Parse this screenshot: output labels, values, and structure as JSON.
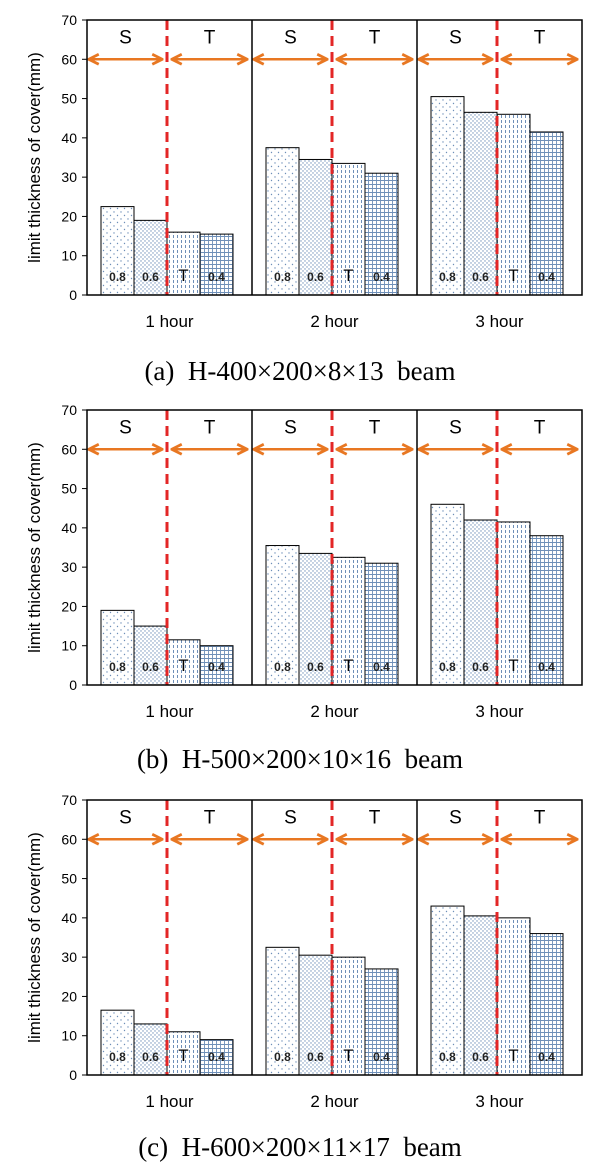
{
  "colors": {
    "arrow": "#E87722",
    "divider": "#E32626",
    "bar_outline": "#000000",
    "pattern": "#6E8FB8"
  },
  "chart_data": [
    {
      "type": "bar",
      "caption": "(a)  H-400×200×8×13  beam",
      "ylabel": "limit thickness of cover(mm)",
      "ylim": [
        0,
        70
      ],
      "yticks": [
        0,
        10,
        20,
        30,
        40,
        50,
        60,
        70
      ],
      "categories": [
        "1 hour",
        "2 hour",
        "3 hour"
      ],
      "series": [
        {
          "name": "0.8",
          "values": [
            22.5,
            37.5,
            50.5
          ]
        },
        {
          "name": "0.6",
          "values": [
            19,
            34.5,
            46.5
          ]
        },
        {
          "name": "T",
          "values": [
            16,
            33.5,
            46
          ]
        },
        {
          "name": "0.4",
          "values": [
            15.5,
            31,
            41.5
          ]
        }
      ],
      "region_labels": [
        "S",
        "T"
      ],
      "grid": false
    },
    {
      "type": "bar",
      "caption": "(b)  H-500×200×10×16  beam",
      "ylabel": "limit thickness of cover(mm)",
      "ylim": [
        0,
        70
      ],
      "yticks": [
        0,
        10,
        20,
        30,
        40,
        50,
        60,
        70
      ],
      "categories": [
        "1 hour",
        "2 hour",
        "3 hour"
      ],
      "series": [
        {
          "name": "0.8",
          "values": [
            19,
            35.5,
            46
          ]
        },
        {
          "name": "0.6",
          "values": [
            15,
            33.5,
            42
          ]
        },
        {
          "name": "T",
          "values": [
            11.5,
            32.5,
            41.5
          ]
        },
        {
          "name": "0.4",
          "values": [
            10,
            31,
            38
          ]
        }
      ],
      "region_labels": [
        "S",
        "T"
      ],
      "grid": false
    },
    {
      "type": "bar",
      "caption": "(c)  H-600×200×11×17  beam",
      "ylabel": "limit thickness of cover(mm)",
      "ylim": [
        0,
        70
      ],
      "yticks": [
        0,
        10,
        20,
        30,
        40,
        50,
        60,
        70
      ],
      "categories": [
        "1 hour",
        "2 hour",
        "3 hour"
      ],
      "series": [
        {
          "name": "0.8",
          "values": [
            16.5,
            32.5,
            43
          ]
        },
        {
          "name": "0.6",
          "values": [
            13,
            30.5,
            40.5
          ]
        },
        {
          "name": "T",
          "values": [
            11,
            30,
            40
          ]
        },
        {
          "name": "0.4",
          "values": [
            9,
            27,
            36
          ]
        }
      ],
      "region_labels": [
        "S",
        "T"
      ],
      "grid": false
    }
  ]
}
